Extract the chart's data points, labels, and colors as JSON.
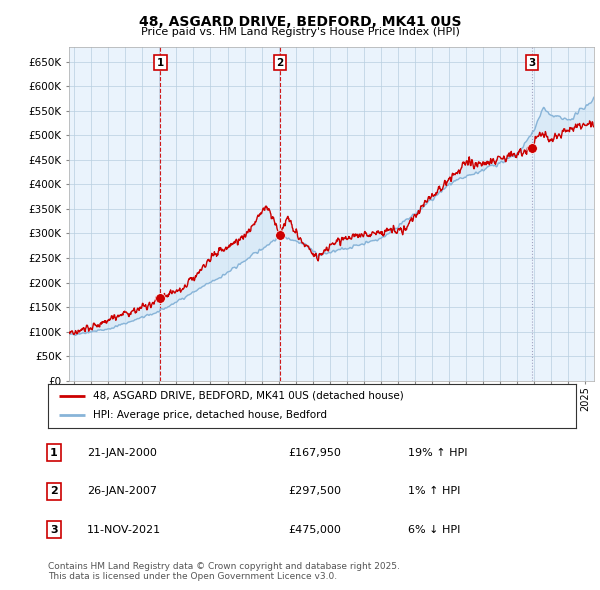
{
  "title": "48, ASGARD DRIVE, BEDFORD, MK41 0US",
  "subtitle": "Price paid vs. HM Land Registry's House Price Index (HPI)",
  "ylim": [
    0,
    680000
  ],
  "yticks": [
    0,
    50000,
    100000,
    150000,
    200000,
    250000,
    300000,
    350000,
    400000,
    450000,
    500000,
    550000,
    600000,
    650000
  ],
  "xlim_start": 1994.7,
  "xlim_end": 2025.5,
  "hpi_color": "#88b4d8",
  "hpi_fill_color": "#d0e4f4",
  "price_color": "#cc0000",
  "background_color": "#ffffff",
  "chart_bg_color": "#eaf3fc",
  "grid_color": "#b8cfe0",
  "sale_years": [
    2000.06,
    2007.07,
    2021.87
  ],
  "sale_prices": [
    167950,
    297500,
    475000
  ],
  "sale_labels": [
    "1",
    "2",
    "3"
  ],
  "vline_colors": [
    "#cc0000",
    "#cc0000",
    "#aaaacc"
  ],
  "legend_entries": [
    "48, ASGARD DRIVE, BEDFORD, MK41 0US (detached house)",
    "HPI: Average price, detached house, Bedford"
  ],
  "table_rows": [
    {
      "num": "1",
      "date": "21-JAN-2000",
      "price": "£167,950",
      "hpi": "19% ↑ HPI"
    },
    {
      "num": "2",
      "date": "26-JAN-2007",
      "price": "£297,500",
      "hpi": "1% ↑ HPI"
    },
    {
      "num": "3",
      "date": "11-NOV-2021",
      "price": "£475,000",
      "hpi": "6% ↓ HPI"
    }
  ],
  "footnote": "Contains HM Land Registry data © Crown copyright and database right 2025.\nThis data is licensed under the Open Government Licence v3.0."
}
